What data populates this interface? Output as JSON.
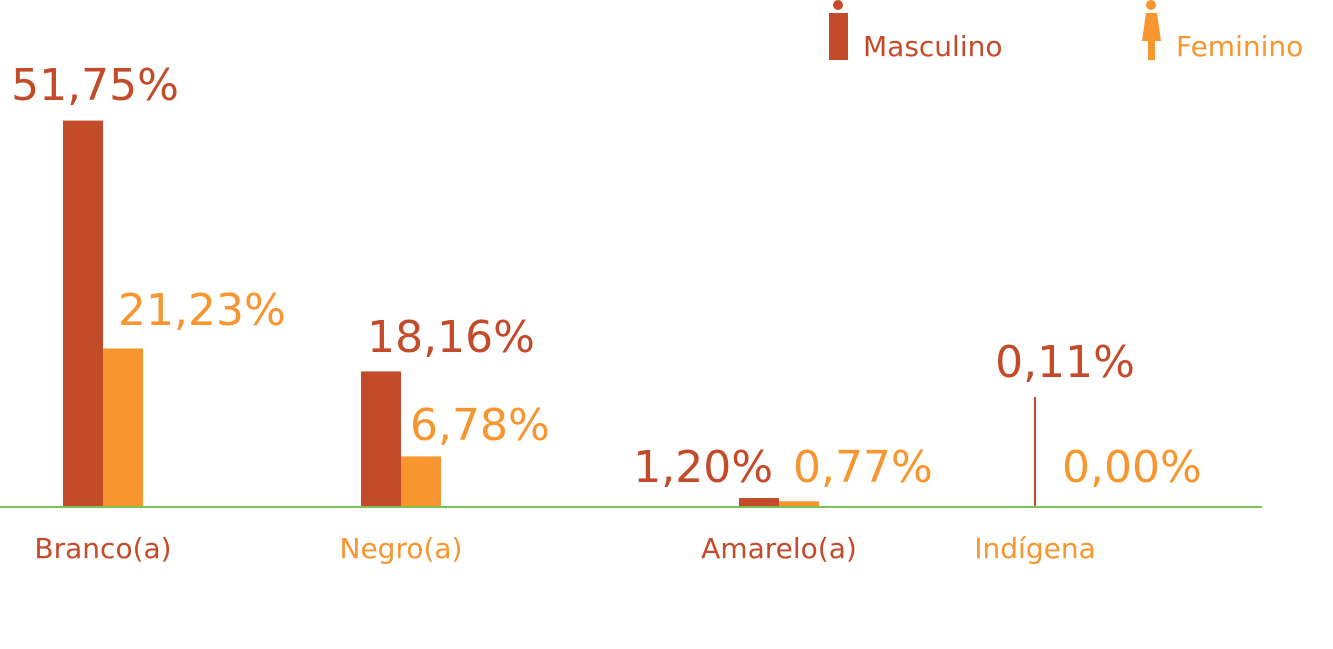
{
  "chart_data": {
    "type": "bar",
    "categories": [
      "Branco(a)",
      "Negro(a)",
      "Amarelo(a)",
      "Indígena"
    ],
    "series": [
      {
        "name": "Masculino",
        "color": "#c44b2a",
        "values": [
          51.75,
          18.16,
          1.2,
          0.11
        ],
        "value_labels": [
          "51,75%",
          "18,16%",
          "1,20%",
          "0,11%"
        ]
      },
      {
        "name": "Feminino",
        "color": "#f7962f",
        "values": [
          21.23,
          6.78,
          0.77,
          0.0
        ],
        "value_labels": [
          "21,23%",
          "6,78%",
          "0,77%",
          "0,00%"
        ]
      }
    ],
    "ylim": [
      0,
      60
    ],
    "grid": false,
    "legend": "top-right"
  }
}
